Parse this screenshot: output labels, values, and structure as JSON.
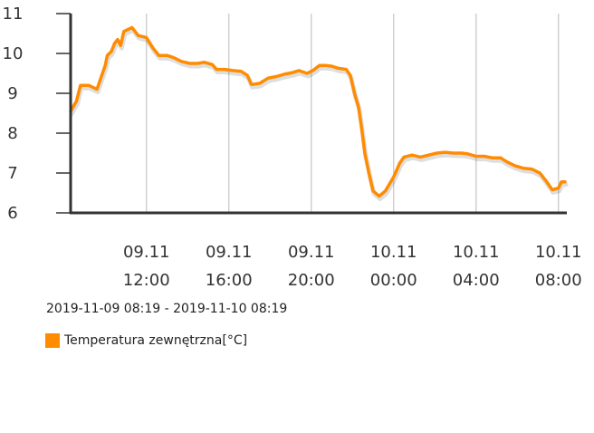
{
  "chart_data": {
    "type": "line",
    "title": "",
    "xlabel": "",
    "ylabel": "",
    "ylim": [
      6,
      11
    ],
    "y_ticks": [
      6,
      7,
      8,
      9,
      10,
      11
    ],
    "x_ticks": [
      {
        "hour": 12,
        "date": "09.11",
        "time": "12:00"
      },
      {
        "hour": 16,
        "date": "09.11",
        "time": "16:00"
      },
      {
        "hour": 20,
        "date": "09.11",
        "time": "20:00"
      },
      {
        "hour": 24,
        "date": "10.11",
        "time": "00:00"
      },
      {
        "hour": 28,
        "date": "10.11",
        "time": "04:00"
      },
      {
        "hour": 32,
        "date": "10.11",
        "time": "08:00"
      }
    ],
    "xlim_hours": [
      8.32,
      32.32
    ],
    "grid": "vertical",
    "legend_position": "bottom-left",
    "series": [
      {
        "name": "Temperatura zewnętrzna[°C]",
        "color": "#ff8c00",
        "points": [
          [
            8.32,
            8.55
          ],
          [
            8.6,
            8.8
          ],
          [
            8.8,
            9.2
          ],
          [
            9.2,
            9.2
          ],
          [
            9.4,
            9.15
          ],
          [
            9.6,
            9.1
          ],
          [
            10.0,
            9.7
          ],
          [
            10.1,
            9.95
          ],
          [
            10.3,
            10.05
          ],
          [
            10.45,
            10.25
          ],
          [
            10.6,
            10.35
          ],
          [
            10.75,
            10.2
          ],
          [
            10.9,
            10.55
          ],
          [
            11.1,
            10.6
          ],
          [
            11.3,
            10.65
          ],
          [
            11.6,
            10.45
          ],
          [
            12.0,
            10.4
          ],
          [
            12.3,
            10.15
          ],
          [
            12.6,
            9.95
          ],
          [
            13.0,
            9.95
          ],
          [
            13.3,
            9.9
          ],
          [
            13.7,
            9.8
          ],
          [
            14.1,
            9.75
          ],
          [
            14.5,
            9.75
          ],
          [
            14.8,
            9.78
          ],
          [
            15.2,
            9.72
          ],
          [
            15.4,
            9.6
          ],
          [
            15.8,
            9.6
          ],
          [
            16.2,
            9.57
          ],
          [
            16.6,
            9.55
          ],
          [
            16.9,
            9.45
          ],
          [
            17.1,
            9.22
          ],
          [
            17.5,
            9.25
          ],
          [
            17.9,
            9.38
          ],
          [
            18.3,
            9.42
          ],
          [
            18.7,
            9.48
          ],
          [
            19.1,
            9.52
          ],
          [
            19.4,
            9.57
          ],
          [
            19.8,
            9.5
          ],
          [
            20.1,
            9.58
          ],
          [
            20.4,
            9.7
          ],
          [
            20.7,
            9.7
          ],
          [
            21.0,
            9.68
          ],
          [
            21.3,
            9.63
          ],
          [
            21.7,
            9.6
          ],
          [
            21.9,
            9.45
          ],
          [
            22.1,
            9.0
          ],
          [
            22.3,
            8.65
          ],
          [
            22.45,
            8.1
          ],
          [
            22.6,
            7.5
          ],
          [
            22.8,
            7.0
          ],
          [
            23.0,
            6.55
          ],
          [
            23.3,
            6.42
          ],
          [
            23.6,
            6.55
          ],
          [
            24.0,
            6.9
          ],
          [
            24.3,
            7.25
          ],
          [
            24.5,
            7.4
          ],
          [
            24.9,
            7.45
          ],
          [
            25.3,
            7.4
          ],
          [
            25.7,
            7.45
          ],
          [
            26.1,
            7.5
          ],
          [
            26.5,
            7.52
          ],
          [
            26.9,
            7.5
          ],
          [
            27.3,
            7.5
          ],
          [
            27.6,
            7.48
          ],
          [
            28.0,
            7.42
          ],
          [
            28.4,
            7.42
          ],
          [
            28.8,
            7.38
          ],
          [
            29.2,
            7.38
          ],
          [
            29.5,
            7.28
          ],
          [
            29.9,
            7.18
          ],
          [
            30.3,
            7.12
          ],
          [
            30.7,
            7.1
          ],
          [
            31.1,
            7.0
          ],
          [
            31.4,
            6.8
          ],
          [
            31.7,
            6.58
          ],
          [
            32.0,
            6.62
          ],
          [
            32.15,
            6.78
          ],
          [
            32.32,
            6.78
          ]
        ]
      }
    ]
  },
  "date_range": "2019-11-09 08:19 - 2019-11-10 08:19",
  "legend": {
    "label": "Temperatura zewnętrzna[°C]",
    "color": "#ff8c00"
  }
}
